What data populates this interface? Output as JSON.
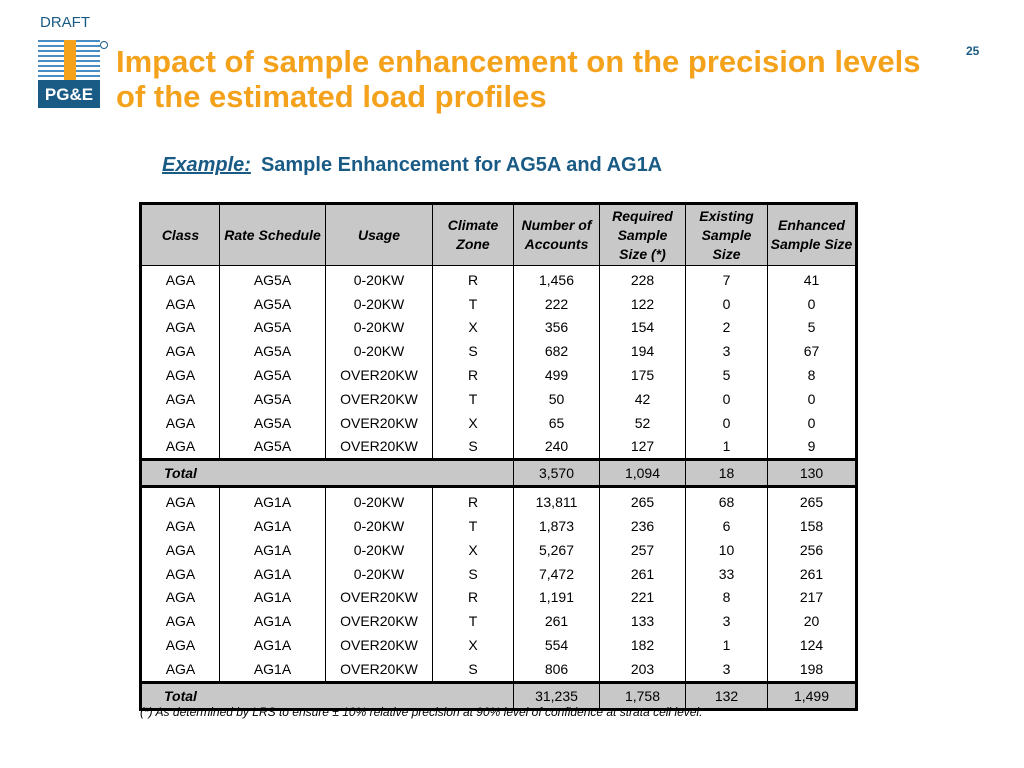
{
  "header": {
    "draft_label": "DRAFT",
    "page_number": "25",
    "logo_text": "PG&E",
    "title": "Impact of sample enhancement on the precision levels of the estimated load profiles"
  },
  "subtitle": {
    "example_label": "Example:",
    "text": "Sample Enhancement for AG5A and AG1A"
  },
  "table": {
    "columns": [
      "Class",
      "Rate Schedule",
      "Usage",
      "Climate Zone",
      "Number of Accounts",
      "Required Sample Size (*)",
      "Existing Sample Size",
      "Enhanced Sample Size"
    ],
    "groups": [
      {
        "rows": [
          [
            "AGA",
            "AG5A",
            "0-20KW",
            "R",
            "1,456",
            "228",
            "7",
            "41"
          ],
          [
            "AGA",
            "AG5A",
            "0-20KW",
            "T",
            "222",
            "122",
            "0",
            "0"
          ],
          [
            "AGA",
            "AG5A",
            "0-20KW",
            "X",
            "356",
            "154",
            "2",
            "5"
          ],
          [
            "AGA",
            "AG5A",
            "0-20KW",
            "S",
            "682",
            "194",
            "3",
            "67"
          ],
          [
            "AGA",
            "AG5A",
            "OVER20KW",
            "R",
            "499",
            "175",
            "5",
            "8"
          ],
          [
            "AGA",
            "AG5A",
            "OVER20KW",
            "T",
            "50",
            "42",
            "0",
            "0"
          ],
          [
            "AGA",
            "AG5A",
            "OVER20KW",
            "X",
            "65",
            "52",
            "0",
            "0"
          ],
          [
            "AGA",
            "AG5A",
            "OVER20KW",
            "S",
            "240",
            "127",
            "1",
            "9"
          ]
        ],
        "total": {
          "label": "Total",
          "values": [
            "3,570",
            "1,094",
            "18",
            "130"
          ]
        }
      },
      {
        "rows": [
          [
            "AGA",
            "AG1A",
            "0-20KW",
            "R",
            "13,811",
            "265",
            "68",
            "265"
          ],
          [
            "AGA",
            "AG1A",
            "0-20KW",
            "T",
            "1,873",
            "236",
            "6",
            "158"
          ],
          [
            "AGA",
            "AG1A",
            "0-20KW",
            "X",
            "5,267",
            "257",
            "10",
            "256"
          ],
          [
            "AGA",
            "AG1A",
            "0-20KW",
            "S",
            "7,472",
            "261",
            "33",
            "261"
          ],
          [
            "AGA",
            "AG1A",
            "OVER20KW",
            "R",
            "1,191",
            "221",
            "8",
            "217"
          ],
          [
            "AGA",
            "AG1A",
            "OVER20KW",
            "T",
            "261",
            "133",
            "3",
            "20"
          ],
          [
            "AGA",
            "AG1A",
            "OVER20KW",
            "X",
            "554",
            "182",
            "1",
            "124"
          ],
          [
            "AGA",
            "AG1A",
            "OVER20KW",
            "S",
            "806",
            "203",
            "3",
            "198"
          ]
        ],
        "total": {
          "label": "Total",
          "values": [
            "31,235",
            "1,758",
            "132",
            "1,499"
          ]
        }
      }
    ]
  },
  "footnote": "(*) As determined by LRS to ensure ± 10% relative precision at 90% level of confidence at strata cell level.",
  "colors": {
    "title": "#f4a21c",
    "accent_blue": "#1a5b86",
    "header_fill": "#c8c8c8"
  }
}
